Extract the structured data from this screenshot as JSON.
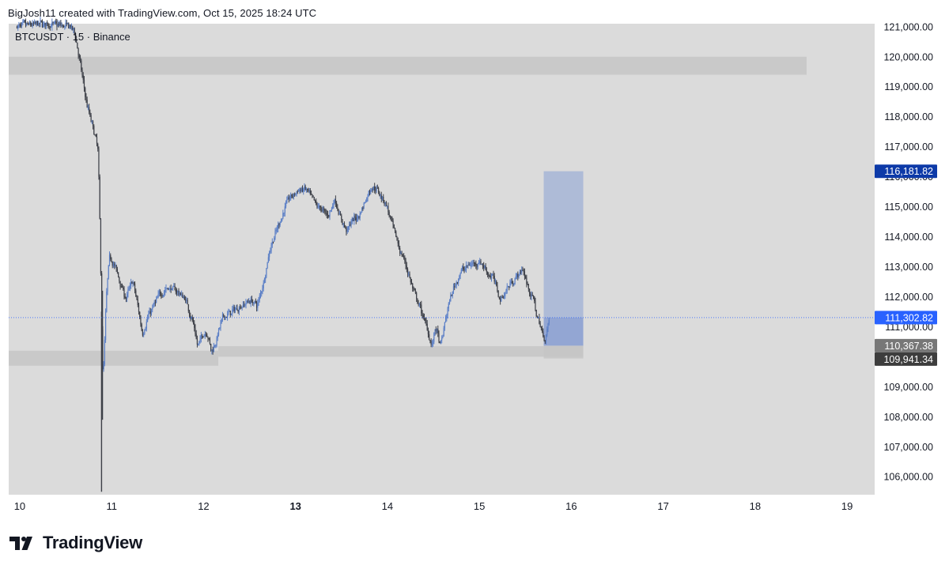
{
  "header": {
    "caption": "BigJosh11 created with TradingView.com, Oct 15, 2025 18:24 UTC"
  },
  "brand": {
    "name": "TradingView",
    "logo_icon": "tradingview-logo-icon"
  },
  "colors": {
    "plot_background": "#dbdbdb",
    "candle_up": "#5b7fc6",
    "candle_down": "#3c3f47",
    "zone": "#c5c5c5",
    "target_box": "#a8b7d6",
    "entry_box": "#8fa3d3",
    "last_price_line": "#2962ff",
    "price_label_blue": "#2962ff",
    "price_label_navy": "#0d3aa8",
    "price_label_grey": "#777777",
    "price_label_dark": "#3d3d3d"
  },
  "chart_data": {
    "type": "candlestick",
    "symbol_label": "BTCUSDT · 15 · Binance",
    "timeframe": "15",
    "exchange": "Binance",
    "ylim": [
      105400,
      121100
    ],
    "y_ticks": [
      106000,
      107000,
      108000,
      109000,
      110000,
      111000,
      112000,
      113000,
      114000,
      115000,
      116000,
      117000,
      118000,
      119000,
      120000,
      121000
    ],
    "y_tick_labels": [
      "106,000.00",
      "107,000.00",
      "108,000.00",
      "109,000.00",
      "110,000.00",
      "111,000.00",
      "112,000.00",
      "113,000.00",
      "114,000.00",
      "115,000.00",
      "116,000.00",
      "117,000.00",
      "118,000.00",
      "119,000.00",
      "120,000.00",
      "121,000.00"
    ],
    "xlim": [
      9.88,
      19.3
    ],
    "x_ticks": [
      {
        "day": 10,
        "label": "10",
        "bold": false
      },
      {
        "day": 11,
        "label": "11",
        "bold": false
      },
      {
        "day": 12,
        "label": "12",
        "bold": false
      },
      {
        "day": 13,
        "label": "13",
        "bold": true
      },
      {
        "day": 14,
        "label": "14",
        "bold": false
      },
      {
        "day": 15,
        "label": "15",
        "bold": false
      },
      {
        "day": 16,
        "label": "16",
        "bold": false
      },
      {
        "day": 17,
        "label": "17",
        "bold": false
      },
      {
        "day": 18,
        "label": "18",
        "bold": false
      },
      {
        "day": 19,
        "label": "19",
        "bold": false
      }
    ],
    "path": [
      [
        9.97,
        121000
      ],
      [
        10.25,
        121100
      ],
      [
        10.55,
        121000
      ],
      [
        10.6,
        120700
      ],
      [
        10.72,
        118400
      ],
      [
        10.8,
        117500
      ],
      [
        10.85,
        116800
      ],
      [
        10.87,
        113500
      ],
      [
        10.9,
        108100
      ],
      [
        10.93,
        112000
      ],
      [
        10.97,
        113500
      ],
      [
        11.05,
        112800
      ],
      [
        11.15,
        111900
      ],
      [
        11.22,
        112600
      ],
      [
        11.28,
        111600
      ],
      [
        11.33,
        110700
      ],
      [
        11.38,
        111300
      ],
      [
        11.45,
        111700
      ],
      [
        11.52,
        112100
      ],
      [
        11.6,
        112300
      ],
      [
        11.7,
        112200
      ],
      [
        11.8,
        111900
      ],
      [
        11.88,
        111100
      ],
      [
        11.93,
        110250
      ],
      [
        11.97,
        110700
      ],
      [
        12.03,
        110900
      ],
      [
        12.08,
        110100
      ],
      [
        12.13,
        110600
      ],
      [
        12.2,
        111300
      ],
      [
        12.3,
        111500
      ],
      [
        12.4,
        111700
      ],
      [
        12.5,
        111900
      ],
      [
        12.58,
        111700
      ],
      [
        12.65,
        112600
      ],
      [
        12.72,
        113700
      ],
      [
        12.8,
        114300
      ],
      [
        12.9,
        115200
      ],
      [
        13.0,
        115500
      ],
      [
        13.1,
        115600
      ],
      [
        13.2,
        115100
      ],
      [
        13.28,
        114900
      ],
      [
        13.35,
        114700
      ],
      [
        13.42,
        115300
      ],
      [
        13.48,
        114600
      ],
      [
        13.55,
        114200
      ],
      [
        13.6,
        114500
      ],
      [
        13.68,
        114700
      ],
      [
        13.75,
        115200
      ],
      [
        13.82,
        115700
      ],
      [
        13.9,
        115500
      ],
      [
        13.98,
        115100
      ],
      [
        14.03,
        114500
      ],
      [
        14.12,
        113600
      ],
      [
        14.2,
        113000
      ],
      [
        14.28,
        112100
      ],
      [
        14.36,
        111500
      ],
      [
        14.43,
        110900
      ],
      [
        14.48,
        110300
      ],
      [
        14.52,
        111100
      ],
      [
        14.57,
        110200
      ],
      [
        14.63,
        111400
      ],
      [
        14.7,
        112200
      ],
      [
        14.78,
        112800
      ],
      [
        14.85,
        113000
      ],
      [
        14.92,
        113100
      ],
      [
        15.0,
        113200
      ],
      [
        15.08,
        112800
      ],
      [
        15.15,
        112600
      ],
      [
        15.22,
        111900
      ],
      [
        15.28,
        112200
      ],
      [
        15.34,
        112500
      ],
      [
        15.4,
        112700
      ],
      [
        15.47,
        112900
      ],
      [
        15.52,
        112300
      ],
      [
        15.58,
        111900
      ],
      [
        15.63,
        111200
      ],
      [
        15.67,
        110900
      ],
      [
        15.7,
        110400
      ],
      [
        15.73,
        111000
      ],
      [
        15.76,
        111302.82
      ]
    ],
    "candle_step": 0.0106,
    "spikes": [
      {
        "x": 10.89,
        "high": 111500,
        "low": 105500
      },
      {
        "x": 10.9,
        "high": 112200,
        "low": 107900
      }
    ],
    "zones": [
      {
        "x0": 9.88,
        "x1": 18.56,
        "y0": 119400,
        "y1": 120000
      },
      {
        "x0": 9.88,
        "x1": 12.16,
        "y0": 109700,
        "y1": 110200
      },
      {
        "x0": 12.16,
        "x1": 16.13,
        "y0": 110000,
        "y1": 110350
      },
      {
        "x0": 15.7,
        "x1": 16.13,
        "y0": 109941.34,
        "y1": 110367.38
      }
    ],
    "position_tool": {
      "x0": 15.7,
      "x1": 16.13,
      "entry": 111302.82,
      "stop": 110367.38,
      "target": 116181.82
    },
    "last_price": 111302.82,
    "price_labels": [
      {
        "value": 116181.82,
        "text": "116,181.82",
        "color_key": "price_label_navy"
      },
      {
        "value": 111302.82,
        "text": "111,302.82",
        "color_key": "price_label_blue"
      },
      {
        "value": 110367.38,
        "text": "110,367.38",
        "color_key": "price_label_grey"
      },
      {
        "value": 109941.34,
        "text": "109,941.34",
        "color_key": "price_label_dark"
      }
    ]
  }
}
